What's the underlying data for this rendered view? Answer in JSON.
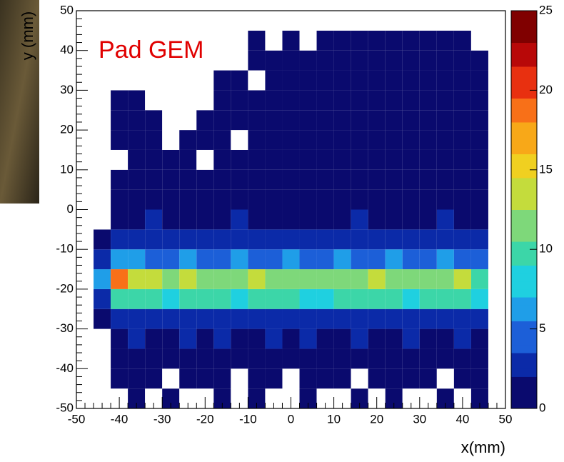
{
  "chart_data": {
    "type": "heatmap",
    "annotation": "Pad GEM",
    "annotation_color": "#e00000",
    "x_label": "x(mm)",
    "y_label": "y (mm)",
    "xlim": [
      -50,
      50
    ],
    "ylim": [
      -50,
      50
    ],
    "zlim": [
      0,
      25
    ],
    "xticks": [
      -50,
      -40,
      -30,
      -20,
      -10,
      0,
      10,
      20,
      30,
      40,
      50
    ],
    "yticks": [
      -50,
      -40,
      -30,
      -20,
      -10,
      0,
      10,
      20,
      30,
      40,
      50
    ],
    "zticks": [
      0,
      5,
      10,
      15,
      20,
      25
    ],
    "colorscale": [
      "#0a0a6e",
      "#0b2aa8",
      "#1c5fd8",
      "#1f9ee8",
      "#1fd0e0",
      "#3cd6a8",
      "#7ed87a",
      "#c4dc3c",
      "#f0d020",
      "#f8a818",
      "#f87018",
      "#e83010",
      "#b80808",
      "#800000"
    ],
    "xbins": [
      -46,
      -42,
      -38,
      -34,
      -30,
      -26,
      -22,
      -18,
      -14,
      -10,
      -6,
      -2,
      2,
      6,
      10,
      14,
      18,
      22,
      26,
      30,
      34,
      38,
      42,
      46
    ],
    "ybins": [
      -50,
      -45,
      -40,
      -35,
      -30,
      -25,
      -20,
      -15,
      -10,
      -5,
      0,
      5,
      10,
      15,
      20,
      25,
      30,
      35,
      40,
      45,
      50
    ],
    "z": [
      [
        0,
        0,
        1,
        0,
        1,
        0,
        0,
        1,
        0,
        1,
        0,
        0,
        1,
        0,
        0,
        1,
        0,
        1,
        0,
        0,
        1,
        0,
        1
      ],
      [
        0,
        1,
        1,
        1,
        0,
        1,
        1,
        1,
        0,
        1,
        1,
        0,
        1,
        1,
        1,
        0,
        1,
        1,
        1,
        1,
        0,
        1,
        1
      ],
      [
        0,
        1,
        1,
        1,
        1,
        1,
        1,
        1,
        1,
        1,
        1,
        1,
        1,
        1,
        1,
        1,
        1,
        1,
        1,
        1,
        1,
        1,
        1
      ],
      [
        0,
        1,
        2,
        1,
        1,
        2,
        1,
        2,
        1,
        1,
        2,
        1,
        2,
        1,
        1,
        2,
        1,
        1,
        2,
        1,
        1,
        2,
        1
      ],
      [
        1,
        2,
        2,
        2,
        2,
        2,
        2,
        2,
        2,
        2,
        2,
        2,
        2,
        2,
        2,
        2,
        2,
        2,
        2,
        2,
        2,
        2,
        2
      ],
      [
        3,
        9,
        10,
        9,
        8,
        9,
        10,
        9,
        8,
        9,
        10,
        9,
        8,
        8,
        9,
        10,
        9,
        9,
        8,
        10,
        9,
        9,
        8
      ],
      [
        6,
        18,
        14,
        13,
        12,
        14,
        12,
        11,
        12,
        13,
        12,
        11,
        12,
        12,
        11,
        12,
        13,
        12,
        12,
        11,
        12,
        13,
        10
      ],
      [
        3,
        6,
        6,
        5,
        5,
        6,
        5,
        5,
        6,
        5,
        5,
        6,
        5,
        5,
        6,
        5,
        5,
        6,
        5,
        5,
        6,
        5,
        4
      ],
      [
        1,
        2,
        2,
        2,
        2,
        2,
        2,
        2,
        2,
        2,
        2,
        2,
        2,
        2,
        2,
        2,
        2,
        2,
        2,
        2,
        2,
        2,
        2
      ],
      [
        0,
        1,
        1,
        2,
        1,
        1,
        1,
        1,
        2,
        1,
        1,
        1,
        1,
        1,
        1,
        2,
        1,
        1,
        1,
        1,
        2,
        1,
        1
      ],
      [
        0,
        1,
        1,
        1,
        1,
        1,
        1,
        1,
        1,
        1,
        1,
        1,
        1,
        1,
        1,
        1,
        1,
        1,
        1,
        1,
        1,
        1,
        1
      ],
      [
        0,
        1,
        1,
        1,
        1,
        1,
        1,
        1,
        1,
        1,
        1,
        1,
        1,
        1,
        1,
        1,
        1,
        1,
        1,
        1,
        1,
        1,
        1
      ],
      [
        0,
        0,
        1,
        1,
        1,
        1,
        0,
        1,
        1,
        1,
        1,
        1,
        1,
        1,
        1,
        1,
        1,
        1,
        1,
        1,
        1,
        1,
        1
      ],
      [
        0,
        1,
        1,
        1,
        0,
        1,
        1,
        1,
        0,
        1,
        1,
        1,
        1,
        1,
        1,
        1,
        1,
        1,
        1,
        1,
        1,
        1,
        1
      ],
      [
        0,
        1,
        1,
        1,
        0,
        0,
        1,
        1,
        1,
        1,
        1,
        1,
        1,
        1,
        1,
        1,
        1,
        1,
        1,
        1,
        1,
        1,
        1
      ],
      [
        0,
        1,
        1,
        0,
        0,
        0,
        0,
        1,
        1,
        1,
        1,
        1,
        1,
        1,
        1,
        1,
        1,
        1,
        1,
        1,
        1,
        1,
        1
      ],
      [
        0,
        0,
        0,
        0,
        0,
        0,
        0,
        1,
        1,
        0,
        1,
        1,
        1,
        1,
        1,
        1,
        1,
        1,
        1,
        1,
        1,
        1,
        1
      ],
      [
        0,
        0,
        0,
        0,
        0,
        0,
        0,
        0,
        0,
        1,
        1,
        1,
        1,
        1,
        1,
        1,
        1,
        1,
        1,
        1,
        1,
        1,
        1
      ],
      [
        0,
        0,
        0,
        0,
        0,
        0,
        0,
        0,
        0,
        1,
        0,
        1,
        0,
        1,
        1,
        1,
        1,
        1,
        1,
        1,
        1,
        1,
        0
      ],
      [
        0,
        0,
        0,
        0,
        0,
        0,
        0,
        0,
        0,
        0,
        0,
        0,
        0,
        0,
        0,
        0,
        0,
        0,
        0,
        0,
        0,
        0,
        0
      ]
    ]
  }
}
